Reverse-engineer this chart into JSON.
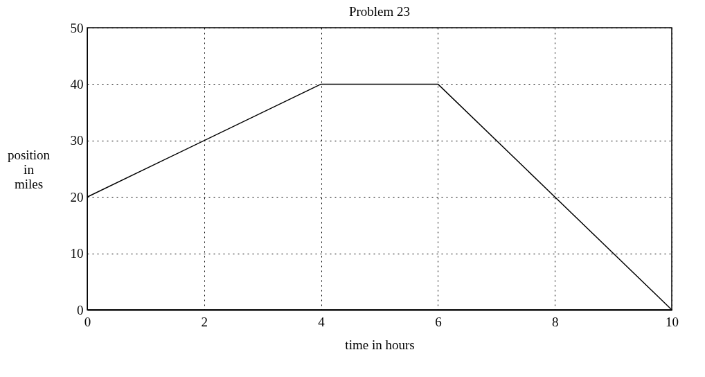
{
  "chart_data": {
    "type": "line",
    "title": "Problem 23",
    "xlabel": "time in hours",
    "ylabel": "position in miles",
    "x": [
      0,
      4,
      6,
      10
    ],
    "series": [
      {
        "color": "#000000",
        "values": [
          20,
          40,
          40,
          0
        ]
      }
    ],
    "xlim": [
      0,
      10
    ],
    "xticks": [
      0,
      2,
      4,
      6,
      8,
      10
    ],
    "ylim": [
      0,
      50
    ],
    "yticks": [
      0,
      10,
      20,
      30,
      40,
      50
    ],
    "grid": true,
    "line_style": "solid",
    "marker": "none"
  }
}
